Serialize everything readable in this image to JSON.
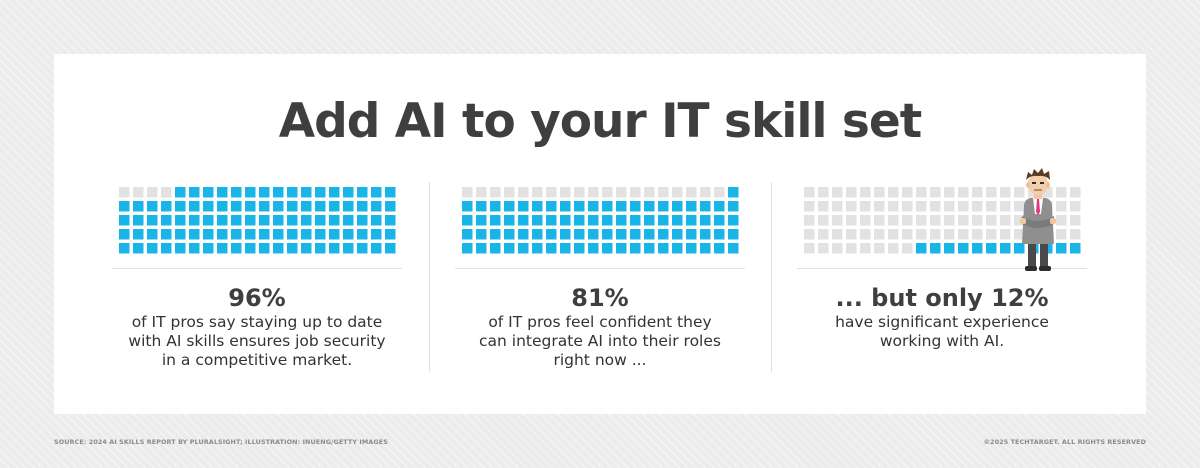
{
  "title": "Add AI to your IT skill set",
  "colors": {
    "filled": "#19b4e8",
    "empty": "#e2e2e2",
    "text": "#3f3f3f"
  },
  "chart_data": [
    {
      "type": "waffle",
      "value_percent": 96,
      "grid_rows": 5,
      "grid_cols": 20,
      "headline": "96%",
      "description": [
        "of IT pros say staying up to date",
        "with AI skills ensures job security",
        "in a competitive market."
      ]
    },
    {
      "type": "waffle",
      "value_percent": 81,
      "grid_rows": 5,
      "grid_cols": 20,
      "headline": "81%",
      "description": [
        "of IT pros feel confident they",
        "can integrate AI into their roles",
        "right now ..."
      ]
    },
    {
      "type": "waffle",
      "value_percent": 12,
      "grid_rows": 5,
      "grid_cols": 20,
      "headline": "... but only 12%",
      "description": [
        "have significant experience",
        "working with AI."
      ]
    }
  ],
  "illustration": {
    "icon": "businessman-arms-crossed-icon"
  },
  "footer": {
    "source": "SOURCE: 2024 AI SKILLS REPORT BY PLURALSIGHT; ILLUSTRATION: INUENG/GETTY IMAGES",
    "copyright": "©2025 TECHTARGET. ALL RIGHTS RESERVED"
  }
}
